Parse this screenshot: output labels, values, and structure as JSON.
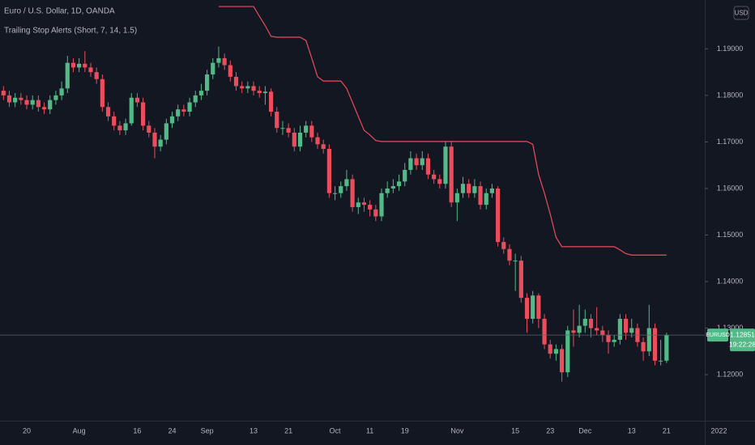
{
  "chart_data": {
    "type": "candlestick",
    "title": "Euro / U.S. Dollar, 1D, OANDA",
    "currency": "USD",
    "symbol": "EURUSD",
    "last_price_label": "1.12851",
    "countdown": "19:22:28",
    "up_color": "#53b987",
    "down_color": "#eb4d5c",
    "grid": false,
    "ylim": [
      1.1101,
      1.2005
    ],
    "yticks": [
      {
        "value": 1.12,
        "label": "1.12000"
      },
      {
        "value": 1.13,
        "label": "1.13000"
      },
      {
        "value": 1.14,
        "label": "1.14000"
      },
      {
        "value": 1.15,
        "label": "1.15000"
      },
      {
        "value": 1.16,
        "label": "1.16000"
      },
      {
        "value": 1.17,
        "label": "1.17000"
      },
      {
        "value": 1.18,
        "label": "1.18000"
      },
      {
        "value": 1.19,
        "label": "1.19000"
      }
    ],
    "categories": [
      null,
      null,
      null,
      null,
      "20",
      null,
      null,
      null,
      null,
      null,
      null,
      null,
      null,
      "Aug",
      null,
      null,
      null,
      null,
      null,
      null,
      null,
      null,
      null,
      "16",
      null,
      null,
      null,
      null,
      null,
      "24",
      null,
      null,
      null,
      null,
      null,
      "Sep",
      null,
      null,
      null,
      null,
      null,
      null,
      null,
      "13",
      null,
      null,
      null,
      null,
      null,
      "21",
      null,
      null,
      null,
      null,
      null,
      null,
      null,
      "Oct",
      null,
      null,
      null,
      null,
      null,
      "11",
      null,
      null,
      null,
      null,
      null,
      "19",
      null,
      null,
      null,
      null,
      null,
      null,
      null,
      null,
      "Nov",
      null,
      null,
      null,
      null,
      null,
      null,
      null,
      null,
      null,
      "15",
      null,
      null,
      null,
      null,
      null,
      "23",
      null,
      null,
      null,
      null,
      null,
      "Dec",
      null,
      null,
      null,
      null,
      null,
      null,
      null,
      "13",
      null,
      null,
      null,
      null,
      null,
      "21",
      null,
      null,
      null,
      null,
      null,
      null,
      null,
      null,
      "2022"
    ],
    "open": [
      1.181,
      1.18,
      1.1785,
      1.1795,
      1.179,
      1.178,
      1.179,
      1.1775,
      1.177,
      1.179,
      1.18,
      1.1815,
      1.187,
      1.186,
      1.1868,
      1.186,
      1.185,
      1.1835,
      1.1775,
      1.1755,
      1.1735,
      1.1725,
      1.174,
      1.1795,
      1.1785,
      1.1735,
      1.172,
      1.169,
      1.1705,
      1.174,
      1.1755,
      1.177,
      1.1765,
      1.1785,
      1.18,
      1.181,
      1.1845,
      1.187,
      1.188,
      1.1865,
      1.184,
      1.182,
      1.1815,
      1.182,
      1.181,
      1.1805,
      1.1808,
      1.1765,
      1.173,
      1.173,
      1.172,
      1.169,
      1.172,
      1.1735,
      1.171,
      1.1695,
      1.1685,
      1.159,
      1.159,
      1.1605,
      1.162,
      1.156,
      1.157,
      1.1565,
      1.1555,
      1.154,
      1.159,
      1.16,
      1.1605,
      1.1615,
      1.164,
      1.1665,
      1.165,
      1.1665,
      1.163,
      1.162,
      1.161,
      1.169,
      1.157,
      1.159,
      1.161,
      1.159,
      1.1605,
      1.1565,
      1.159,
      1.16,
      1.1485,
      1.147,
      1.1445,
      1.1445,
      1.1365,
      1.132,
      1.137,
      1.132,
      1.1265,
      1.1245,
      1.1255,
      1.1205,
      1.1295,
      1.129,
      1.1305,
      1.132,
      1.13,
      1.1295,
      1.1285,
      1.127,
      1.1275,
      1.132,
      1.129,
      1.13,
      1.127,
      1.125,
      1.13,
      1.123,
      1.123,
      null,
      null,
      null,
      null,
      null,
      null,
      null,
      null,
      null
    ],
    "high": [
      1.182,
      1.181,
      1.1805,
      1.1805,
      1.18,
      1.18,
      1.18,
      1.1785,
      1.18,
      1.181,
      1.183,
      1.1885,
      1.188,
      1.188,
      1.1895,
      1.187,
      1.186,
      1.1845,
      1.1785,
      1.1765,
      1.1745,
      1.175,
      1.1805,
      1.1805,
      1.1795,
      1.1745,
      1.173,
      1.1715,
      1.175,
      1.1765,
      1.178,
      1.178,
      1.1795,
      1.181,
      1.1825,
      1.1855,
      1.188,
      1.1905,
      1.189,
      1.1875,
      1.185,
      1.183,
      1.183,
      1.183,
      1.182,
      1.182,
      1.1815,
      1.1775,
      1.1745,
      1.174,
      1.173,
      1.1735,
      1.1745,
      1.1745,
      1.172,
      1.1705,
      1.1695,
      1.1605,
      1.1615,
      1.164,
      1.163,
      1.158,
      1.158,
      1.1575,
      1.1565,
      1.16,
      1.1615,
      1.162,
      1.163,
      1.1655,
      1.168,
      1.1675,
      1.168,
      1.1675,
      1.164,
      1.163,
      1.17,
      1.17,
      1.16,
      1.1625,
      1.162,
      1.162,
      1.1615,
      1.16,
      1.161,
      1.1605,
      1.1495,
      1.148,
      1.146,
      1.1455,
      1.1375,
      1.138,
      1.1375,
      1.133,
      1.1275,
      1.1265,
      1.1265,
      1.1305,
      1.134,
      1.135,
      1.134,
      1.133,
      1.1345,
      1.1305,
      1.1295,
      1.1285,
      1.133,
      1.133,
      1.132,
      1.131,
      1.128,
      1.135,
      1.131,
      1.1275,
      1.129,
      null,
      null,
      null,
      null,
      null,
      null,
      null,
      null,
      null
    ],
    "low": [
      1.179,
      1.1775,
      1.1775,
      1.178,
      1.177,
      1.177,
      1.1765,
      1.176,
      1.176,
      1.178,
      1.179,
      1.1805,
      1.185,
      1.185,
      1.185,
      1.184,
      1.1825,
      1.1765,
      1.1745,
      1.1725,
      1.1715,
      1.1715,
      1.1735,
      1.1775,
      1.1725,
      1.171,
      1.1665,
      1.168,
      1.1695,
      1.173,
      1.1745,
      1.1755,
      1.1755,
      1.1775,
      1.179,
      1.18,
      1.1835,
      1.186,
      1.1855,
      1.183,
      1.181,
      1.1805,
      1.1805,
      1.18,
      1.1795,
      1.178,
      1.1755,
      1.172,
      1.1715,
      1.171,
      1.168,
      1.168,
      1.171,
      1.17,
      1.1685,
      1.1675,
      1.158,
      1.1575,
      1.158,
      1.1595,
      1.155,
      1.1545,
      1.155,
      1.154,
      1.153,
      1.153,
      1.158,
      1.159,
      1.1595,
      1.1605,
      1.163,
      1.164,
      1.164,
      1.162,
      1.161,
      1.16,
      1.16,
      1.156,
      1.153,
      1.158,
      1.158,
      1.158,
      1.1555,
      1.1555,
      1.158,
      1.1475,
      1.146,
      1.1435,
      1.138,
      1.1355,
      1.129,
      1.131,
      1.13,
      1.1255,
      1.1235,
      1.123,
      1.1185,
      1.1195,
      1.126,
      1.128,
      1.129,
      1.128,
      1.1285,
      1.127,
      1.1245,
      1.126,
      1.1265,
      1.1275,
      1.128,
      1.126,
      1.123,
      1.124,
      1.122,
      1.122,
      1.1225,
      null,
      null,
      null,
      null,
      null,
      null,
      null,
      null,
      null
    ],
    "close": [
      1.18,
      1.1785,
      1.1795,
      1.179,
      1.178,
      1.179,
      1.1775,
      1.177,
      1.179,
      1.18,
      1.1815,
      1.187,
      1.186,
      1.1868,
      1.186,
      1.185,
      1.1835,
      1.1775,
      1.1755,
      1.1735,
      1.1725,
      1.174,
      1.1795,
      1.1785,
      1.1735,
      1.172,
      1.169,
      1.1705,
      1.174,
      1.1755,
      1.177,
      1.1765,
      1.1785,
      1.18,
      1.181,
      1.1845,
      1.187,
      1.188,
      1.1865,
      1.184,
      1.182,
      1.1815,
      1.182,
      1.181,
      1.1805,
      1.1808,
      1.1765,
      1.173,
      1.173,
      1.172,
      1.169,
      1.172,
      1.1735,
      1.171,
      1.1695,
      1.1685,
      1.159,
      1.159,
      1.1605,
      1.162,
      1.156,
      1.157,
      1.1565,
      1.1555,
      1.154,
      1.159,
      1.16,
      1.1605,
      1.1615,
      1.164,
      1.1665,
      1.165,
      1.1665,
      1.163,
      1.162,
      1.161,
      1.169,
      1.157,
      1.159,
      1.161,
      1.159,
      1.1605,
      1.1565,
      1.159,
      1.16,
      1.1485,
      1.147,
      1.1445,
      1.1445,
      1.1365,
      1.132,
      1.137,
      1.132,
      1.1265,
      1.1245,
      1.1255,
      1.1205,
      1.1295,
      1.129,
      1.1305,
      1.132,
      1.13,
      1.1295,
      1.1285,
      1.127,
      1.1275,
      1.132,
      1.129,
      1.13,
      1.127,
      1.125,
      1.13,
      1.123,
      1.123,
      1.12851,
      null,
      null,
      null,
      null,
      null,
      null,
      null,
      null,
      null
    ],
    "indicator": {
      "label": "Trailing Stop Alerts (Short, 7, 14, 1.5)",
      "color": "#eb4d5c",
      "values": [
        null,
        null,
        null,
        null,
        null,
        null,
        null,
        null,
        null,
        null,
        null,
        null,
        null,
        null,
        null,
        null,
        null,
        null,
        null,
        null,
        null,
        null,
        null,
        null,
        null,
        null,
        null,
        null,
        null,
        null,
        null,
        null,
        null,
        null,
        null,
        null,
        null,
        1.1991,
        1.1991,
        1.1991,
        1.1991,
        1.1991,
        1.1991,
        1.1991,
        1.197,
        1.195,
        1.1927,
        1.1925,
        1.1925,
        1.1925,
        1.1925,
        1.1925,
        1.1918,
        1.188,
        1.184,
        1.1831,
        1.1831,
        1.1831,
        1.1831,
        1.1815,
        1.1785,
        1.1755,
        1.1725,
        1.1715,
        1.1703,
        1.1701,
        1.1701,
        1.1701,
        1.1701,
        1.1701,
        1.1701,
        1.1701,
        1.1701,
        1.1701,
        1.1701,
        1.1701,
        1.1701,
        1.1701,
        1.1701,
        1.1701,
        1.1701,
        1.1701,
        1.1701,
        1.1701,
        1.1701,
        1.1701,
        1.1701,
        1.1701,
        1.1701,
        1.1701,
        1.1701,
        1.1695,
        1.163,
        1.159,
        1.1545,
        1.1495,
        1.1475,
        1.1475,
        1.1475,
        1.1475,
        1.1475,
        1.1475,
        1.1475,
        1.1475,
        1.1475,
        1.1475,
        1.1468,
        1.146,
        1.1457,
        1.1457,
        1.1457,
        1.1457,
        1.1457,
        1.1457,
        1.1457,
        null,
        null,
        null,
        null,
        null,
        null,
        null,
        null,
        null
      ]
    }
  }
}
